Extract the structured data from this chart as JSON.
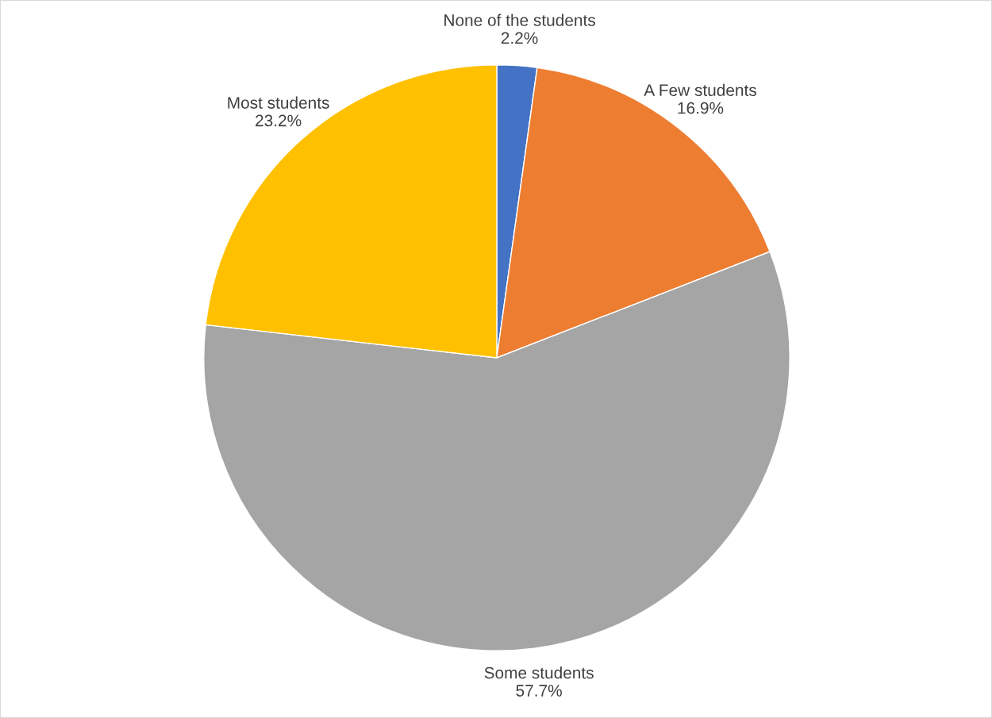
{
  "chart_data": {
    "type": "pie",
    "categories": [
      "None of the students",
      "A Few students",
      "Some students",
      "Most students"
    ],
    "values": [
      2.2,
      16.9,
      57.7,
      23.2
    ],
    "value_labels": [
      "2.2%",
      "16.9%",
      "57.7%",
      "23.2%"
    ],
    "colors": [
      "#4472c4",
      "#ed7d31",
      "#a5a5a5",
      "#ffc000"
    ]
  }
}
